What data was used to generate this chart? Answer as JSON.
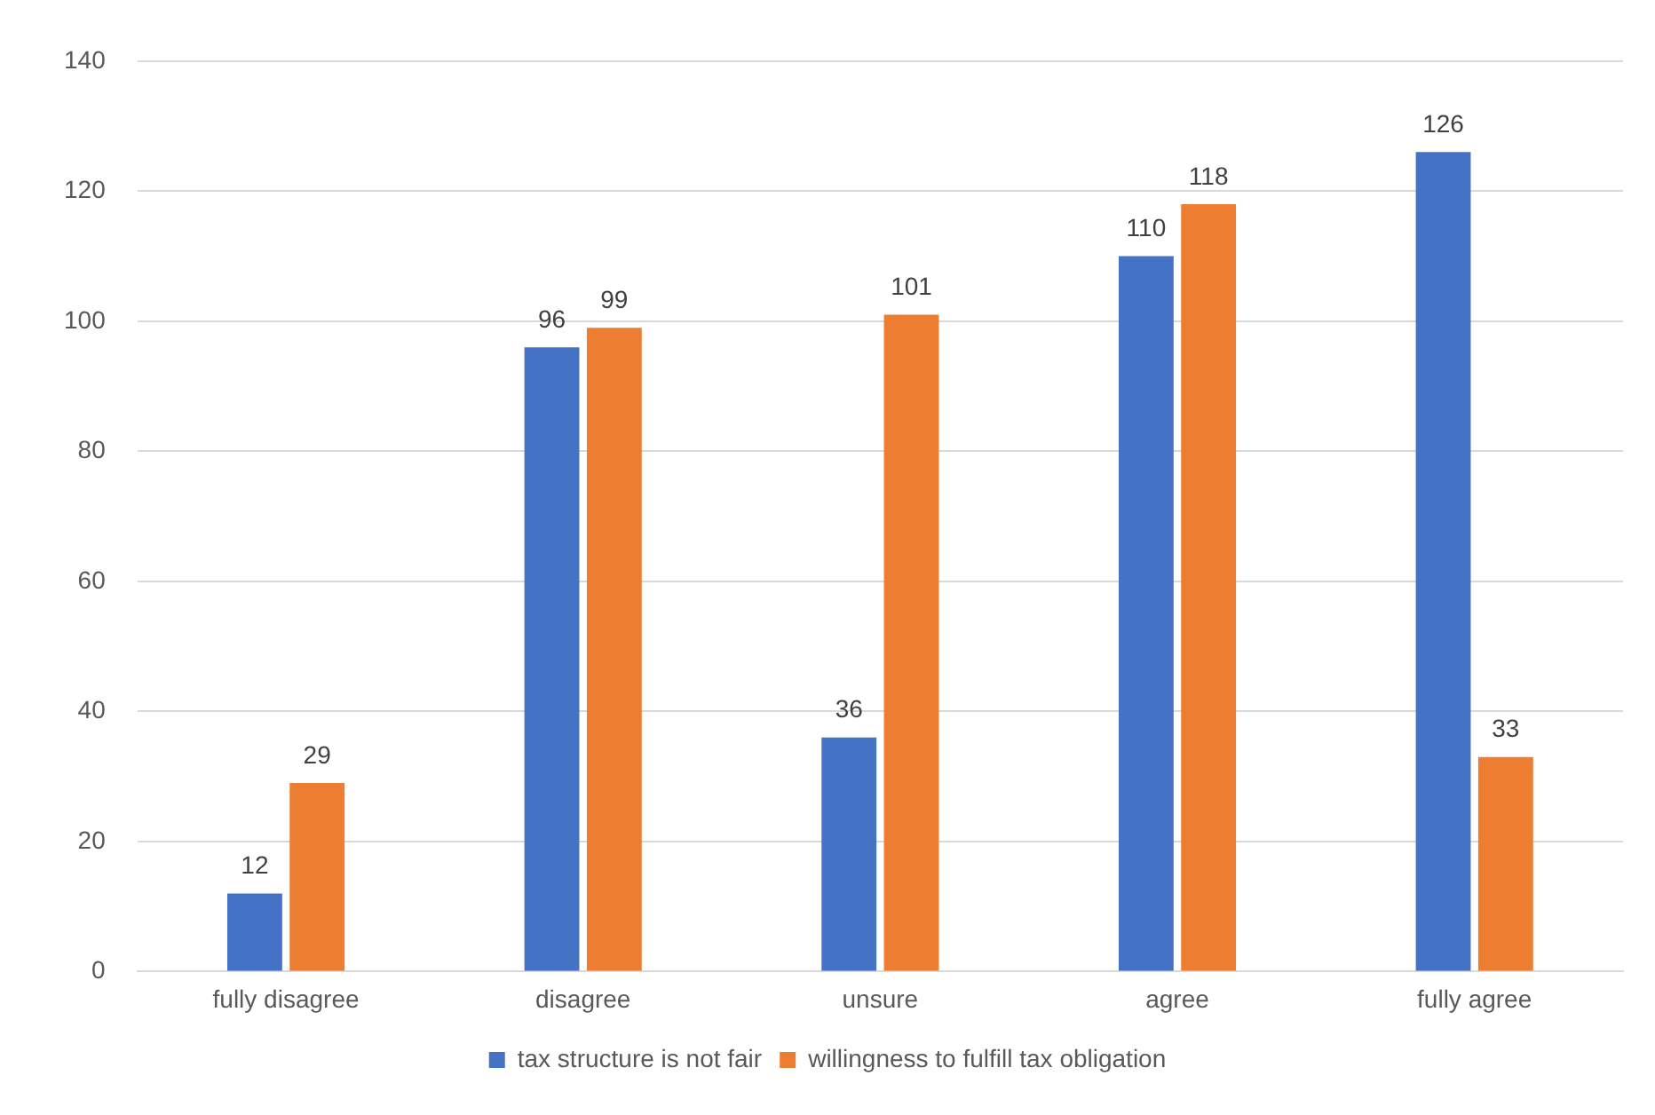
{
  "chart_data": {
    "type": "bar",
    "categories": [
      "fully disagree",
      "disagree",
      "unsure",
      "agree",
      "fully agree"
    ],
    "series": [
      {
        "name": "tax structure is not fair",
        "color": "#4472c4",
        "values": [
          12,
          96,
          36,
          110,
          126
        ]
      },
      {
        "name": "willingness to fulfill tax obligation",
        "color": "#ed7d31",
        "values": [
          29,
          99,
          101,
          118,
          33
        ]
      }
    ],
    "ylim": [
      0,
      140
    ],
    "yticks": [
      0,
      20,
      40,
      60,
      80,
      100,
      120,
      140
    ],
    "grid": "y",
    "legend": "bottom",
    "data_labels": true
  }
}
